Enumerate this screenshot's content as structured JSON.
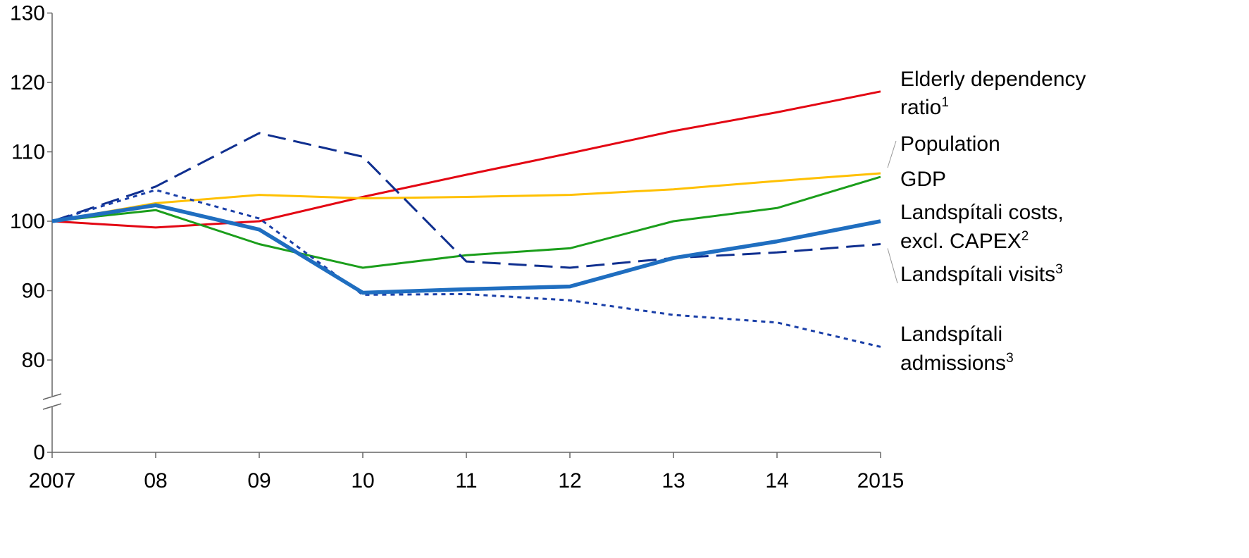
{
  "chart_data": {
    "type": "line",
    "title": "",
    "xlabel": "",
    "ylabel": "",
    "x": [
      "2007",
      "08",
      "09",
      "10",
      "11",
      "12",
      "13",
      "14",
      "2015"
    ],
    "ylim": [
      0,
      130
    ],
    "y_axis_break": [
      75,
      80
    ],
    "y_ticks": [
      0,
      80,
      90,
      100,
      110,
      120,
      130
    ],
    "grid": false,
    "legend": "direct labels at right",
    "series": [
      {
        "key": "elderly",
        "name": "Elderly dependency ratio",
        "name_line1": "Elderly dependency",
        "name_line2": "ratio",
        "footnote": "1",
        "color": "#e30613",
        "style": "solid",
        "values": [
          100,
          99.1,
          100,
          103.5,
          106.7,
          109.8,
          113,
          115.7,
          118.7
        ]
      },
      {
        "key": "population",
        "name": "Population",
        "name_line1": "Population",
        "color": "#ffc000",
        "style": "solid",
        "values": [
          100,
          102.6,
          103.8,
          103.3,
          103.5,
          103.8,
          104.6,
          105.8,
          106.9
        ]
      },
      {
        "key": "gdp",
        "name": "GDP",
        "name_line1": "GDP",
        "color": "#1b9e1b",
        "style": "solid",
        "values": [
          100,
          101.6,
          96.7,
          93.3,
          95.1,
          96.1,
          100,
          101.9,
          106.4
        ]
      },
      {
        "key": "costs",
        "name": "Landspítali costs, excl. CAPEX",
        "name_line1": "Landspítali costs,",
        "name_line2": "excl. CAPEX",
        "footnote": "2",
        "color": "#1f6ec0",
        "style": "thick",
        "values": [
          100,
          102.3,
          98.8,
          89.7,
          90.2,
          90.6,
          94.7,
          97.1,
          100
        ]
      },
      {
        "key": "visits",
        "name": "Landspítali visits",
        "name_line1": "Landspítali visits",
        "footnote": "3",
        "color": "#0f2f8f",
        "style": "dashed",
        "values": [
          100,
          105,
          112.7,
          109.3,
          94.2,
          93.3,
          94.7,
          95.5,
          96.7
        ]
      },
      {
        "key": "admissions",
        "name": "Landspítali admissions",
        "name_line1": "Landspítali",
        "name_line2": "admissions",
        "footnote": "3",
        "color": "#1a3fa8",
        "style": "dotted",
        "values": [
          100,
          104.5,
          100.4,
          89.4,
          89.5,
          88.6,
          86.5,
          85.4,
          81.9
        ]
      }
    ]
  }
}
